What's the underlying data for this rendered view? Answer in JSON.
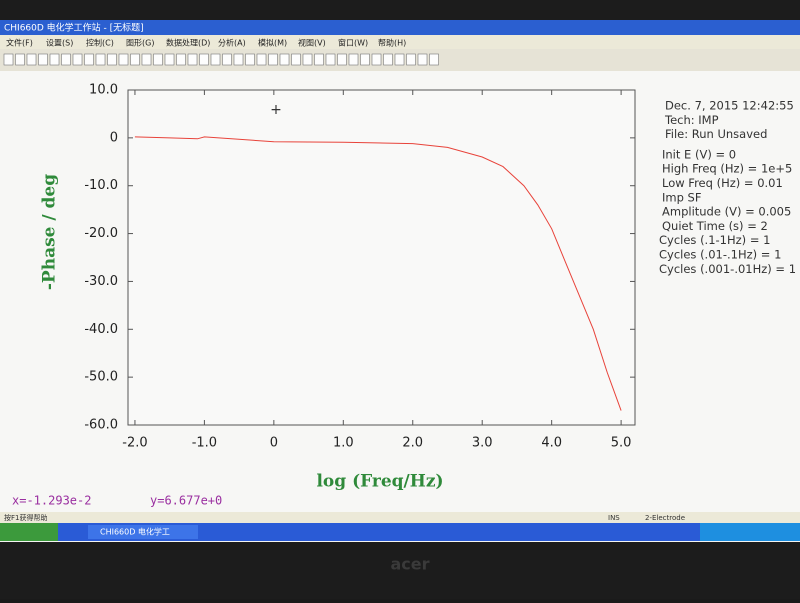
{
  "window": {
    "title": "CHI660D 电化学工作站 - [无标题]"
  },
  "menu": [
    "文件(F)",
    "设置(S)",
    "控制(C)",
    "图形(G)",
    "数据处理(D)",
    "分析(A)",
    "模拟(M)",
    "视图(V)",
    "窗口(W)",
    "帮助(H)"
  ],
  "chart_data": {
    "type": "line",
    "xlabel": "log (Freq/Hz)",
    "ylabel": "-Phase / deg",
    "x": [
      -2.0,
      -1.5,
      -1.1,
      -1.0,
      0.0,
      1.0,
      2.0,
      2.5,
      3.0,
      3.3,
      3.6,
      3.8,
      4.0,
      4.2,
      4.4,
      4.6,
      4.8,
      5.0
    ],
    "values": [
      0.2,
      0.0,
      -0.2,
      0.2,
      -0.8,
      -0.9,
      -1.2,
      -2,
      -4,
      -6,
      -10,
      -14,
      -19,
      -26,
      -33,
      -40,
      -49,
      -57
    ],
    "color": "#e8433a",
    "xlim": [
      -2.1,
      5.2
    ],
    "ylim": [
      -60,
      10
    ],
    "xticks": [
      {
        "value": -2,
        "label": "-2.0"
      },
      {
        "value": -1,
        "label": "-1.0"
      },
      0,
      {
        "value": 1,
        "label": "1.0"
      },
      {
        "value": 2,
        "label": "2.0"
      },
      {
        "value": 3,
        "label": "3.0"
      },
      {
        "value": 4,
        "label": "4.0"
      },
      {
        "value": 5,
        "label": "5.0"
      }
    ],
    "yticks": [
      {
        "value": 10,
        "label": "10.0"
      },
      0,
      {
        "value": -10,
        "label": "-10.0"
      },
      {
        "value": -20,
        "label": "-20.0"
      },
      {
        "value": -30,
        "label": "-30.0"
      },
      {
        "value": -40,
        "label": "-40.0"
      },
      {
        "value": -50,
        "label": "-50.0"
      },
      {
        "value": -60,
        "label": "-60.0"
      }
    ]
  },
  "info": [
    "Dec. 7, 2015   12:42:55",
    "Tech: IMP",
    "File: Run Unsaved",
    "Init E (V) = 0",
    "High Freq (Hz) = 1e+5",
    "Low Freq (Hz) = 0.01",
    "Imp SF",
    "Amplitude (V) = 0.005",
    "Quiet Time (s) = 2",
    "Cycles (.1-1Hz) = 1",
    "Cycles (.01-.1Hz) = 1",
    "Cycles (.001-.01Hz) = 1"
  ],
  "cursor": {
    "x": "x=-1.293e-2",
    "y": "y=6.677e+0"
  },
  "status": {
    "help": "按F1获得帮助",
    "mode": "INS",
    "electrode": "2-Electrode"
  },
  "taskbar": {
    "app": "CHI660D 电化学工"
  },
  "brand": "acer"
}
